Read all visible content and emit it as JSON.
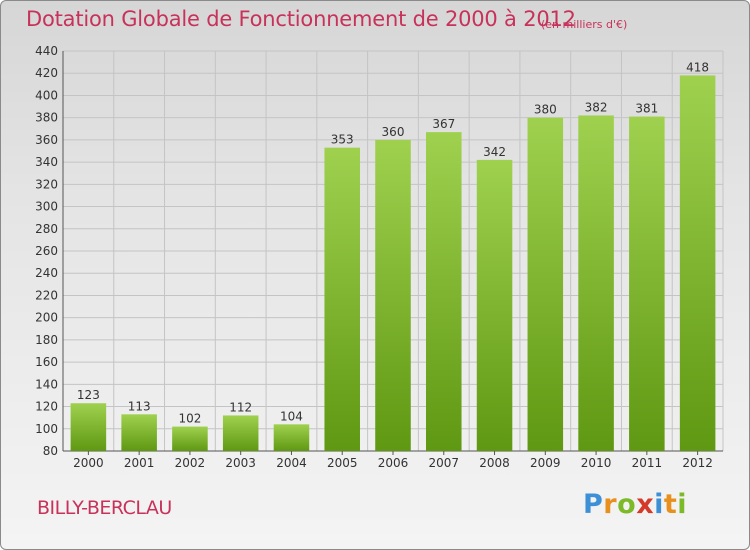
{
  "header": {
    "title": "Dotation Globale de Fonctionnement de 2000 à 2012",
    "subtitle": "(en milliers d'€)"
  },
  "commune": "BILLY-BERCLAU",
  "logo": {
    "letters": [
      "P",
      "r",
      "o",
      "x",
      "i",
      "t",
      "i"
    ]
  },
  "colors": {
    "title": "#c8325a",
    "bar_light": "#9fd14f",
    "bar_dark": "#5f9812",
    "grid": "#c4c4c4"
  },
  "chart_data": {
    "type": "bar",
    "title": "Dotation Globale de Fonctionnement de 2000 à 2012",
    "subtitle": "(en milliers d'€)",
    "xlabel": "",
    "ylabel": "",
    "categories": [
      "2000",
      "2001",
      "2002",
      "2003",
      "2004",
      "2005",
      "2006",
      "2007",
      "2008",
      "2009",
      "2010",
      "2011",
      "2012"
    ],
    "values": [
      123,
      113,
      102,
      112,
      104,
      353,
      360,
      367,
      342,
      380,
      382,
      381,
      418
    ],
    "ylim": [
      80,
      440
    ],
    "yticks": [
      80,
      100,
      120,
      140,
      160,
      180,
      200,
      220,
      240,
      260,
      280,
      300,
      320,
      340,
      360,
      380,
      400,
      420,
      440
    ],
    "grid": true,
    "legend": "none"
  }
}
